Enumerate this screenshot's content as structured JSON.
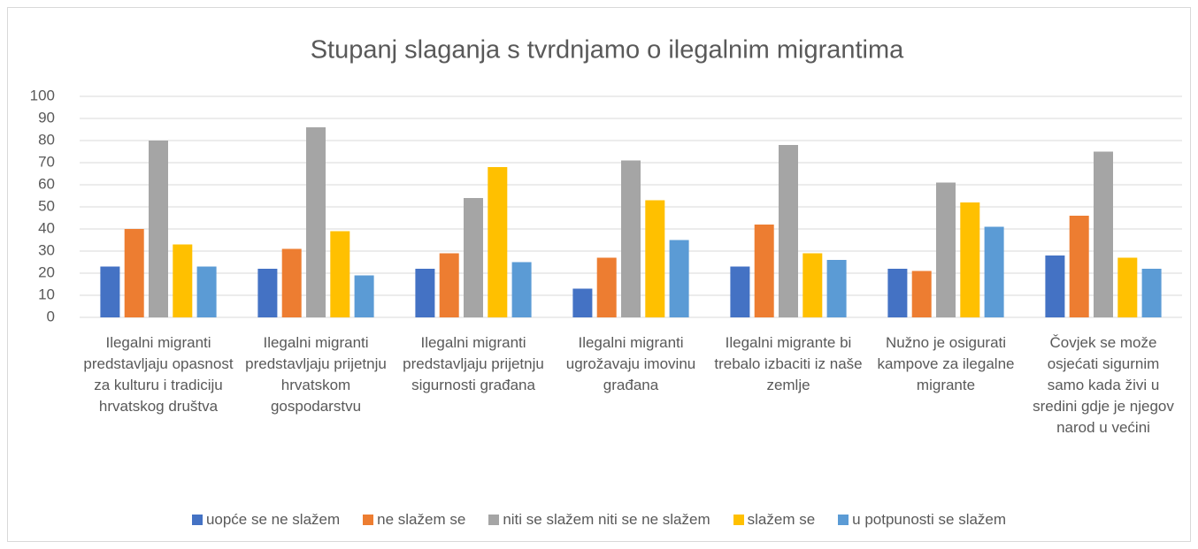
{
  "chart_data": {
    "type": "bar",
    "title": "Stupanj slaganja s tvrdnjamo o ilegalnim migrantima",
    "categories": [
      "Ilegalni migranti predstavljaju opasnost za kulturu i tradiciju hrvatskog društva",
      "Ilegalni migranti predstavljaju prijetnju hrvatskom gospodarstvu",
      "Ilegalni migranti predstavljaju prijetnju sigurnosti građana",
      "Ilegalni migranti ugrožavaju imovinu građana",
      "Ilegalni migrante bi trebalo izbaciti iz naše zemlje",
      "Nužno je osigurati kampove za ilegalne migrante",
      "Čovjek se može osjećati sigurnim samo kada živi u sredini gdje je njegov narod u većini"
    ],
    "series": [
      {
        "name": "uopće se ne slažem",
        "color": "#4472c4",
        "values": [
          23,
          22,
          22,
          13,
          23,
          22,
          28
        ]
      },
      {
        "name": "ne slažem se",
        "color": "#ed7d31",
        "values": [
          40,
          31,
          29,
          27,
          42,
          21,
          46
        ]
      },
      {
        "name": "niti se slažem niti se ne slažem",
        "color": "#a5a5a5",
        "values": [
          80,
          86,
          54,
          71,
          78,
          61,
          75
        ]
      },
      {
        "name": "slažem se",
        "color": "#ffc000",
        "values": [
          33,
          39,
          68,
          53,
          29,
          52,
          27
        ]
      },
      {
        "name": "u potpunosti se slažem",
        "color": "#5b9bd5",
        "values": [
          23,
          19,
          25,
          35,
          26,
          41,
          22
        ]
      }
    ],
    "ylim": [
      0,
      100
    ],
    "yticks": [
      0,
      10,
      20,
      30,
      40,
      50,
      60,
      70,
      80,
      90,
      100
    ],
    "grid": true,
    "legend": "bottom"
  }
}
